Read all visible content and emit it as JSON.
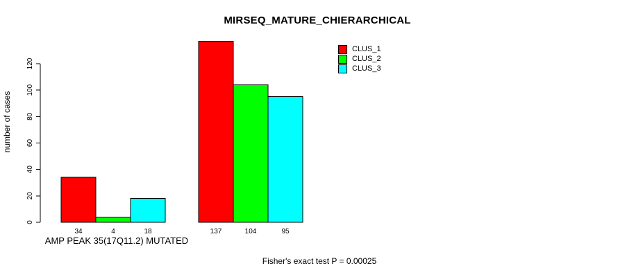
{
  "chart_data": {
    "type": "bar",
    "title": "MIRSEQ_MATURE_CHIERARCHICAL",
    "ylabel": "number of cases",
    "xlabel": "",
    "categories": [
      "AMP PEAK 35(17Q11.2) MUTATED",
      ""
    ],
    "series": [
      {
        "name": "CLUS_1",
        "color": "#ff0000",
        "values": [
          34,
          137
        ]
      },
      {
        "name": "CLUS_2",
        "color": "#00ff00",
        "values": [
          4,
          104
        ]
      },
      {
        "name": "CLUS_3",
        "color": "#00ffff",
        "values": [
          18,
          95
        ]
      }
    ],
    "ylim": [
      0,
      120
    ],
    "yticks": [
      0,
      20,
      40,
      60,
      80,
      100,
      120
    ],
    "grid": false,
    "bar_value_labels": true,
    "legend_position": "top-right",
    "annotation": "Fisher's exact test P = 0.00025"
  }
}
